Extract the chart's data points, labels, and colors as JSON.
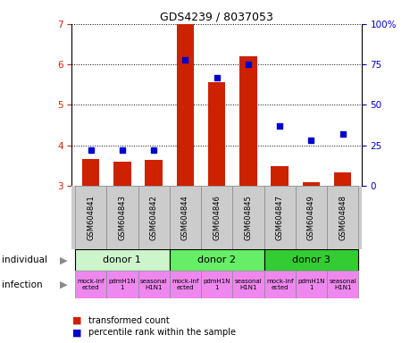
{
  "title": "GDS4239 / 8037053",
  "samples": [
    "GSM604841",
    "GSM604843",
    "GSM604842",
    "GSM604844",
    "GSM604846",
    "GSM604845",
    "GSM604847",
    "GSM604849",
    "GSM604848"
  ],
  "red_values": [
    3.65,
    3.6,
    3.63,
    7.0,
    5.55,
    6.2,
    3.48,
    3.08,
    3.32
  ],
  "blue_values": [
    22,
    22,
    22,
    78,
    67,
    75,
    37,
    28,
    32
  ],
  "ylim_left": [
    3.0,
    7.0
  ],
  "ylim_right": [
    0,
    100
  ],
  "yticks_left": [
    3,
    4,
    5,
    6,
    7
  ],
  "yticks_right": [
    0,
    25,
    50,
    75,
    100
  ],
  "ytick_right_labels": [
    "0",
    "25",
    "50",
    "75",
    "100%"
  ],
  "donors": [
    {
      "label": "donor 1",
      "start": 0,
      "end": 3,
      "color": "#ccf5cc"
    },
    {
      "label": "donor 2",
      "start": 3,
      "end": 6,
      "color": "#66ee66"
    },
    {
      "label": "donor 3",
      "start": 6,
      "end": 9,
      "color": "#33cc33"
    }
  ],
  "inf_color": "#ee88ee",
  "bar_color": "#cc2200",
  "dot_color": "#0000cc",
  "bg_color": "#ffffff",
  "tick_color_left": "#cc2200",
  "tick_color_right": "#0000cc",
  "label_gray": "#cccccc",
  "bar_width": 0.55,
  "legend_red": "transformed count",
  "legend_blue": "percentile rank within the sample"
}
